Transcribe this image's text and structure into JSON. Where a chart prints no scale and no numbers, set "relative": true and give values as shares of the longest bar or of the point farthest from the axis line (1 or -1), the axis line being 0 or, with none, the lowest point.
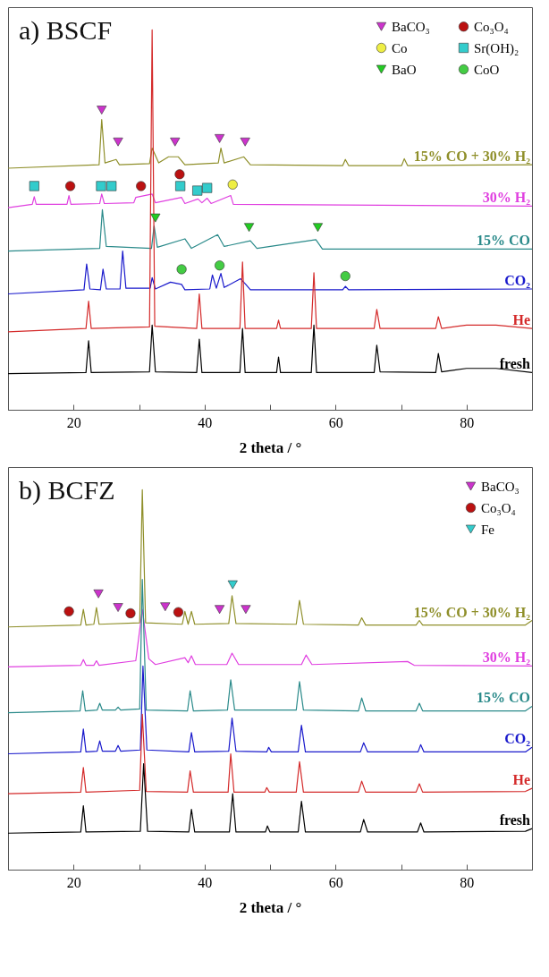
{
  "chart_data": [
    {
      "type": "line",
      "title": "a) BSCF",
      "xlabel": "2 theta / °",
      "relative": true,
      "xlim": [
        10,
        90
      ],
      "xticks": [
        {
          "value": 10,
          "label": null
        },
        20,
        {
          "value": 30,
          "label": null
        },
        40,
        {
          "value": 50,
          "label": null
        },
        60,
        {
          "value": 70,
          "label": null
        },
        80,
        {
          "value": 90,
          "label": null
        }
      ],
      "grid": false,
      "legend": "top right",
      "series": [
        {
          "name": "15% CO + 30% H₂",
          "color": "#8f8f2a",
          "x": [
            10,
            23.9,
            24.3,
            24.8,
            26.5,
            27,
            31.6,
            32,
            33,
            34.5,
            36,
            37,
            42.1,
            42.5,
            43,
            46,
            47,
            61.1,
            61.5,
            62,
            70.1,
            70.5,
            71,
            90
          ],
          "values": [
            0.636,
            0.645,
            0.764,
            0.65,
            0.659,
            0.645,
            0.648,
            0.689,
            0.65,
            0.666,
            0.666,
            0.645,
            0.65,
            0.689,
            0.65,
            0.666,
            0.645,
            0.643,
            0.659,
            0.643,
            0.643,
            0.661,
            0.643,
            0.645
          ]
        },
        {
          "name": "30% H₂",
          "color": "#e040e0",
          "x": [
            10,
            13.7,
            14,
            14.3,
            19,
            19.3,
            19.6,
            24,
            24.3,
            24.7,
            29.2,
            29.5,
            32,
            32.5,
            36.5,
            37,
            39,
            39.6,
            40.4,
            41,
            44,
            44.4,
            90
          ],
          "values": [
            0.532,
            0.541,
            0.561,
            0.541,
            0.541,
            0.564,
            0.541,
            0.543,
            0.568,
            0.543,
            0.545,
            0.559,
            0.568,
            0.545,
            0.559,
            0.543,
            0.555,
            0.545,
            0.557,
            0.543,
            0.564,
            0.541,
            0.536
          ]
        },
        {
          "name": "15% CO",
          "color": "#2a8a8a",
          "x": [
            10,
            24,
            24.4,
            25,
            31.9,
            32.3,
            32.8,
            37,
            38,
            42,
            43,
            47,
            48,
            57,
            58,
            90
          ],
          "values": [
            0.418,
            0.425,
            0.527,
            0.43,
            0.425,
            0.484,
            0.428,
            0.45,
            0.425,
            0.461,
            0.43,
            0.445,
            0.425,
            0.448,
            0.423,
            0.423
          ]
        },
        {
          "name": "CO₂",
          "color": "#1a1acc",
          "x": [
            10,
            21.6,
            22,
            22.5,
            24.1,
            24.5,
            25,
            27.1,
            27.5,
            28,
            31.7,
            32,
            32.5,
            34.8,
            36.5,
            37,
            40.8,
            41.2,
            41.8,
            42.5,
            43,
            45.5,
            46.3,
            47,
            61.1,
            61.5,
            62,
            90
          ],
          "values": [
            0.305,
            0.316,
            0.384,
            0.318,
            0.316,
            0.37,
            0.318,
            0.318,
            0.418,
            0.32,
            0.32,
            0.348,
            0.318,
            0.336,
            0.33,
            0.316,
            0.318,
            0.355,
            0.32,
            0.359,
            0.322,
            0.345,
            0.33,
            0.316,
            0.316,
            0.325,
            0.316,
            0.318
          ]
        },
        {
          "name": "He",
          "color": "#d42a2a",
          "x": [
            10,
            21.9,
            22.3,
            22.7,
            31.6,
            32,
            32.4,
            38.8,
            39.2,
            39.6,
            45.4,
            45.8,
            46.2,
            51,
            51.3,
            51.6,
            56.3,
            56.7,
            57.1,
            65.9,
            66.3,
            66.8,
            75.3,
            75.7,
            76.2,
            80,
            84.5,
            90
          ],
          "values": [
            0.205,
            0.214,
            0.286,
            0.214,
            0.218,
            1.0,
            0.22,
            0.214,
            0.305,
            0.214,
            0.214,
            0.389,
            0.214,
            0.214,
            0.236,
            0.214,
            0.214,
            0.361,
            0.214,
            0.214,
            0.264,
            0.214,
            0.214,
            0.245,
            0.214,
            0.223,
            0.223,
            0.214
          ]
        },
        {
          "name": "fresh",
          "color": "#000000",
          "x": [
            10,
            21.9,
            22.3,
            22.7,
            31.6,
            32,
            32.5,
            38.8,
            39.2,
            39.6,
            45.4,
            45.8,
            46.2,
            51,
            51.3,
            51.6,
            56.3,
            56.7,
            57.1,
            65.9,
            66.3,
            66.8,
            75.3,
            75.7,
            76.2,
            80,
            84.5,
            90
          ],
          "values": [
            0.095,
            0.098,
            0.182,
            0.098,
            0.1,
            0.223,
            0.1,
            0.098,
            0.186,
            0.098,
            0.098,
            0.214,
            0.098,
            0.098,
            0.139,
            0.098,
            0.098,
            0.223,
            0.098,
            0.098,
            0.17,
            0.1,
            0.098,
            0.148,
            0.1,
            0.109,
            0.109,
            0.098
          ]
        },
        {
          "name": "BaCO₃",
          "type": "scatter",
          "marker": "triangle",
          "color": "#cc33cc",
          "x": [
            24.3,
            26.8,
            35.5,
            42.3,
            46.2
          ],
          "values": [
            0.789,
            0.705,
            0.705,
            0.714,
            0.705
          ]
        },
        {
          "name": "Co",
          "type": "scatter",
          "marker": "circle",
          "color": "#eeee44",
          "x": [
            44.3
          ],
          "values": [
            0.593
          ]
        },
        {
          "name": "BaO",
          "type": "scatter",
          "marker": "triangle",
          "color": "#22cc22",
          "x": [
            32.5,
            46.8,
            57.3
          ],
          "values": [
            0.505,
            0.48,
            0.48
          ]
        },
        {
          "name": "Co₃O₄",
          "type": "scatter",
          "marker": "circle",
          "color": "#bb1111",
          "x": [
            19.5,
            30.3,
            36.2
          ],
          "values": [
            0.589,
            0.589,
            0.62
          ]
        },
        {
          "name": "Sr(OH)₂",
          "type": "scatter",
          "marker": "square",
          "color": "#33cccc",
          "x": [
            14,
            24.2,
            25.8,
            36.3,
            38.9,
            40.4
          ],
          "values": [
            0.589,
            0.589,
            0.589,
            0.589,
            0.577,
            0.584
          ]
        },
        {
          "name": "CoO",
          "type": "scatter",
          "marker": "circle",
          "color": "#44cc44",
          "x": [
            36.5,
            42.3,
            61.5
          ],
          "values": [
            0.37,
            0.38,
            0.352
          ]
        }
      ]
    },
    {
      "type": "line",
      "title": "b) BCFZ",
      "xlabel": "2 theta / °",
      "relative": true,
      "xlim": [
        10,
        90
      ],
      "xticks": [
        {
          "value": 10,
          "label": null
        },
        20,
        {
          "value": 30,
          "label": null
        },
        40,
        {
          "value": 50,
          "label": null
        },
        60,
        {
          "value": 70,
          "label": null
        },
        80,
        {
          "value": 90,
          "label": null
        }
      ],
      "grid": false,
      "legend": "top right",
      "series": [
        {
          "name": "15% CO + 30% H₂",
          "color": "#8f8f2a",
          "x": [
            10,
            21.1,
            21.5,
            21.9,
            23.1,
            23.5,
            23.9,
            30.1,
            30.5,
            31,
            36.6,
            37,
            37.5,
            38,
            38.5,
            43.7,
            44.2,
            44.8,
            54,
            54.5,
            55.1,
            63.5,
            64,
            64.6,
            72.3,
            72.8,
            73.3,
            89,
            90
          ],
          "values": [
            0.639,
            0.644,
            0.685,
            0.644,
            0.646,
            0.69,
            0.646,
            0.65,
            1.0,
            0.65,
            0.646,
            0.68,
            0.646,
            0.68,
            0.646,
            0.648,
            0.721,
            0.648,
            0.646,
            0.709,
            0.646,
            0.644,
            0.663,
            0.644,
            0.644,
            0.656,
            0.644,
            0.644,
            0.656
          ]
        },
        {
          "name": "30% H₂",
          "color": "#e040e0",
          "x": [
            10,
            21.1,
            21.5,
            21.9,
            23.1,
            23.5,
            23.9,
            29.5,
            30.5,
            31.5,
            32.5,
            37,
            37.5,
            38,
            38.6,
            43.4,
            44.2,
            45.2,
            54.8,
            55.5,
            56.4,
            71,
            72,
            90
          ],
          "values": [
            0.534,
            0.538,
            0.553,
            0.538,
            0.538,
            0.55,
            0.538,
            0.55,
            0.685,
            0.555,
            0.54,
            0.558,
            0.545,
            0.563,
            0.54,
            0.54,
            0.57,
            0.54,
            0.54,
            0.565,
            0.54,
            0.548,
            0.538,
            0.536
          ]
        },
        {
          "name": "15% CO",
          "color": "#2a8a8a",
          "x": [
            10,
            21,
            21.4,
            21.8,
            23.6,
            24,
            24.4,
            26.4,
            26.8,
            27.2,
            30.1,
            30.5,
            31.1,
            37.4,
            37.8,
            38.3,
            43.5,
            44,
            44.6,
            54,
            54.5,
            55.1,
            63.5,
            64,
            64.6,
            72.3,
            72.8,
            73.3,
            89,
            90
          ],
          "values": [
            0.413,
            0.418,
            0.471,
            0.418,
            0.42,
            0.438,
            0.42,
            0.42,
            0.428,
            0.42,
            0.423,
            0.764,
            0.42,
            0.418,
            0.471,
            0.418,
            0.42,
            0.5,
            0.42,
            0.42,
            0.495,
            0.42,
            0.418,
            0.452,
            0.418,
            0.418,
            0.438,
            0.418,
            0.418,
            0.43
          ]
        },
        {
          "name": "CO₂",
          "color": "#1a1acc",
          "x": [
            10,
            21.1,
            21.5,
            21.9,
            23.6,
            24,
            24.4,
            26.4,
            26.8,
            27.2,
            30.2,
            30.6,
            31.2,
            37.6,
            38,
            38.5,
            43.7,
            44.2,
            44.8,
            49.5,
            49.8,
            50.2,
            54.3,
            54.8,
            55.4,
            63.8,
            64.3,
            64.9,
            72.6,
            73,
            73.5,
            89,
            90
          ],
          "values": [
            0.305,
            0.31,
            0.37,
            0.31,
            0.312,
            0.339,
            0.312,
            0.312,
            0.327,
            0.312,
            0.315,
            0.536,
            0.315,
            0.31,
            0.361,
            0.31,
            0.312,
            0.399,
            0.312,
            0.31,
            0.322,
            0.31,
            0.31,
            0.38,
            0.31,
            0.31,
            0.334,
            0.31,
            0.31,
            0.329,
            0.31,
            0.31,
            0.322
          ]
        },
        {
          "name": "He",
          "color": "#d42a2a",
          "x": [
            10,
            21.1,
            21.5,
            21.9,
            30.1,
            30.5,
            31.1,
            37.4,
            37.8,
            38.3,
            43.6,
            44,
            44.5,
            49.2,
            49.5,
            49.9,
            54,
            54.5,
            55.1,
            63.5,
            64,
            64.6,
            72.3,
            72.8,
            73.3,
            89,
            90
          ],
          "values": [
            0.2,
            0.204,
            0.269,
            0.204,
            0.209,
            0.409,
            0.206,
            0.204,
            0.26,
            0.204,
            0.204,
            0.305,
            0.204,
            0.204,
            0.216,
            0.204,
            0.204,
            0.284,
            0.204,
            0.204,
            0.233,
            0.204,
            0.204,
            0.226,
            0.204,
            0.206,
            0.214
          ]
        },
        {
          "name": "fresh",
          "color": "#000000",
          "x": [
            10,
            21.1,
            21.5,
            21.9,
            30.2,
            30.7,
            31.3,
            37.6,
            38,
            38.5,
            43.8,
            44.3,
            44.8,
            49.3,
            49.6,
            50,
            54.3,
            54.8,
            55.4,
            63.8,
            64.3,
            64.9,
            72.5,
            73,
            73.5,
            89,
            90
          ],
          "values": [
            0.096,
            0.099,
            0.168,
            0.099,
            0.101,
            0.279,
            0.101,
            0.099,
            0.159,
            0.099,
            0.099,
            0.2,
            0.099,
            0.099,
            0.115,
            0.099,
            0.099,
            0.18,
            0.099,
            0.099,
            0.132,
            0.099,
            0.099,
            0.123,
            0.099,
            0.101,
            0.108
          ]
        },
        {
          "name": "BaCO₃",
          "type": "scatter",
          "marker": "triangle",
          "color": "#cc33cc",
          "x": [
            23.8,
            26.8,
            34,
            42.3,
            46.3
          ],
          "values": [
            0.726,
            0.69,
            0.692,
            0.685,
            0.685
          ]
        },
        {
          "name": "Co₃O₄",
          "type": "scatter",
          "marker": "circle",
          "color": "#bb1111",
          "x": [
            19.3,
            28.7,
            36
          ],
          "values": [
            0.68,
            0.675,
            0.678
          ]
        },
        {
          "name": "Fe",
          "type": "scatter",
          "marker": "triangle",
          "color": "#33cccc",
          "x": [
            44.3
          ],
          "values": [
            0.75
          ]
        }
      ]
    }
  ]
}
